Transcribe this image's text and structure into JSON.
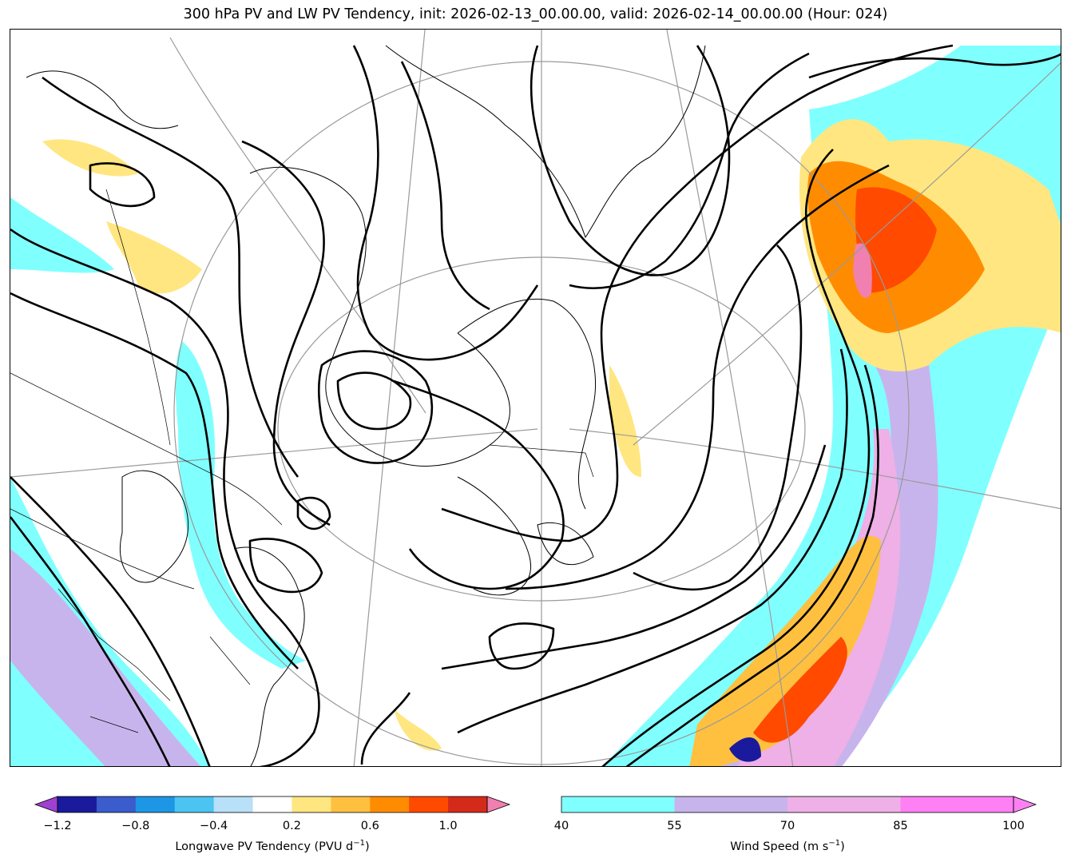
{
  "title": "300 hPa PV and LW PV Tendency, init: 2026-02-13_00.00.00, valid: 2026-02-14_00.00.00 (Hour: 024)",
  "colorbar_left": {
    "label_main": "Longwave PV Tendency (PVU d",
    "label_exp": "−1",
    "label_close": ")",
    "ticks": [
      "−1.2",
      "−0.8",
      "−0.4",
      "0.2",
      "0.6",
      "1.0"
    ],
    "tick_values": [
      -1.2,
      -0.8,
      -0.4,
      0.2,
      0.6,
      1.0
    ],
    "levels": [
      -1.2,
      -1.0,
      -0.8,
      -0.6,
      -0.4,
      -0.2,
      0.2,
      0.4,
      0.6,
      0.8,
      1.0,
      1.2
    ],
    "colors": [
      "#1a1a9c",
      "#3a5ccc",
      "#1e96e6",
      "#4cc4f2",
      "#b8e0f8",
      "#ffffff",
      "#ffe680",
      "#ffc040",
      "#ff8c00",
      "#ff4a00",
      "#d42a1a"
    ],
    "under_color": "#a040d0",
    "over_color": "#f080b0"
  },
  "colorbar_right": {
    "label_main": "Wind Speed (m s",
    "label_exp": "−1",
    "label_close": ")",
    "ticks": [
      "40",
      "55",
      "70",
      "85",
      "100"
    ],
    "tick_values": [
      40,
      55,
      70,
      85,
      100
    ],
    "colors": [
      "#80ffff",
      "#c8b4ec",
      "#eeb0e6",
      "#ff80f4"
    ],
    "over_color": "#ff80f4"
  }
}
